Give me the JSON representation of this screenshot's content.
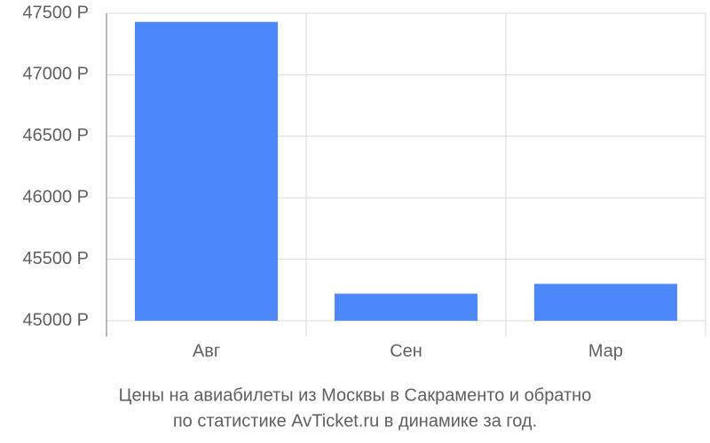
{
  "chart_data": {
    "type": "bar",
    "title": [
      "Цены на авиабилеты из Москвы в Сакраменто и обратно",
      "по статистике AvTicket.ru в динамике за год."
    ],
    "categories": [
      "Авг",
      "Сен",
      "Мар"
    ],
    "values": [
      47430,
      45220,
      45300
    ],
    "color": "#4d88fb",
    "ylim": [
      45000,
      47500
    ],
    "yticks": [
      {
        "value": 45000,
        "label": "45000 Р"
      },
      {
        "value": 45500,
        "label": "45500 Р"
      },
      {
        "value": 46000,
        "label": "46000 Р"
      },
      {
        "value": 46500,
        "label": "46500 Р"
      },
      {
        "value": 47000,
        "label": "47000 Р"
      },
      {
        "value": 47500,
        "label": "47500 Р"
      }
    ],
    "grid": true
  }
}
